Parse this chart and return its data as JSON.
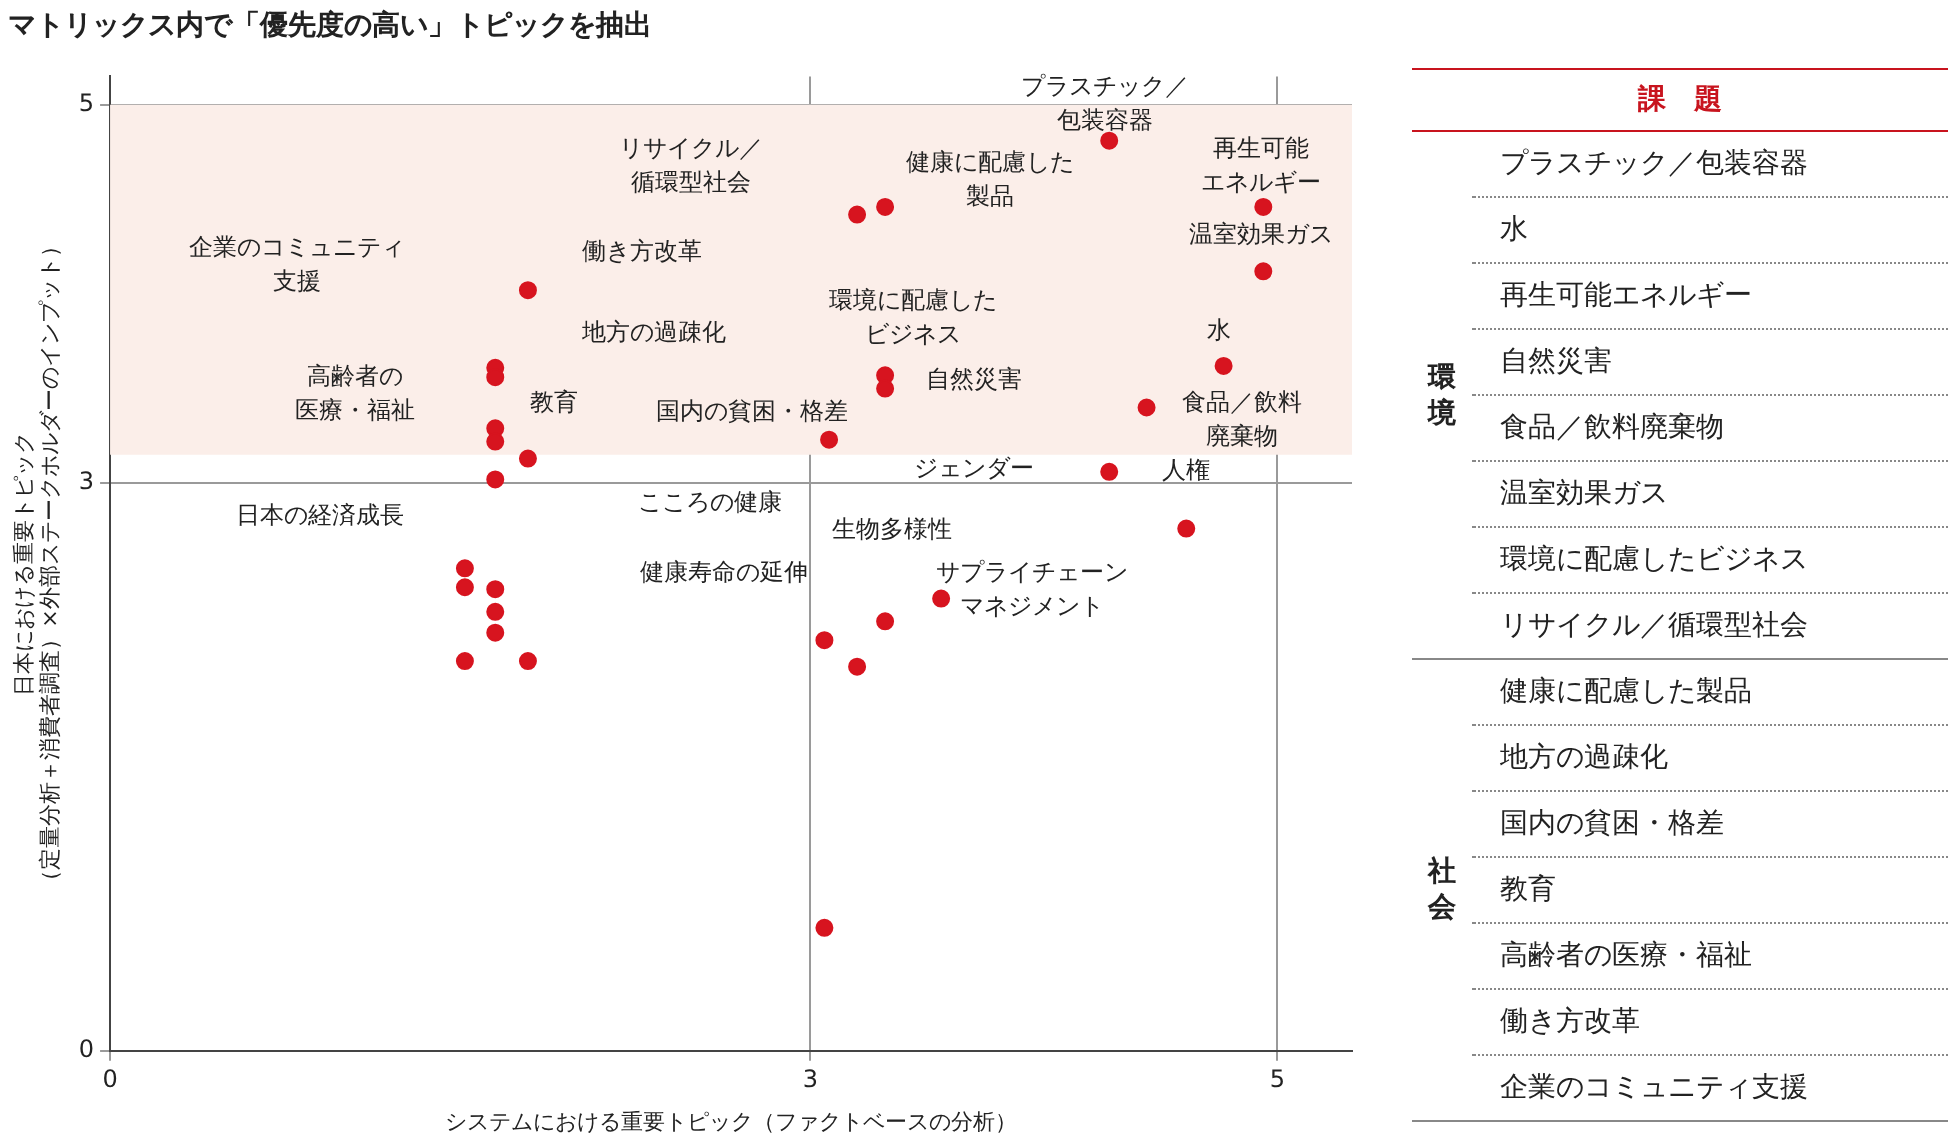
{
  "chart_data": [
    {
      "type": "scatter",
      "title": "マトリックス内で「優先度の高い」トピックを抽出",
      "xlabel": "システムにおける重要トピック（ファクトベースの分析）",
      "ylabel": "日本における重要トピック（定量分析＋消費者調査）×外部ステークホルダーのインプット）",
      "xlim": [
        0,
        5.32
      ],
      "ylim": [
        0,
        5.15
      ],
      "xticks": [
        0,
        3,
        5
      ],
      "yticks": [
        0,
        3,
        5
      ],
      "grid": true,
      "marker": "circle",
      "bands": [
        {
          "axis": "y",
          "from": 3.15,
          "to": 5,
          "color": "#fbeee9"
        }
      ],
      "series": [
        {
          "color": "#d7141f",
          "x": [
            4.28,
            3.2,
            3.32,
            4.94,
            4.94,
            1.79,
            1.65,
            1.65,
            3.32,
            3.32,
            4.77,
            4.44,
            1.65,
            1.65,
            3.08,
            1.79,
            1.65,
            4.28,
            4.61,
            1.52,
            1.52,
            1.65,
            1.65,
            1.65,
            1.52,
            1.79,
            3.56,
            3.32,
            3.06,
            3.2,
            3.06
          ],
          "values": [
            4.81,
            4.42,
            4.46,
            4.46,
            4.12,
            4.02,
            3.61,
            3.56,
            3.57,
            3.5,
            3.62,
            3.4,
            3.29,
            3.22,
            3.23,
            3.13,
            3.02,
            3.06,
            2.76,
            2.55,
            2.45,
            2.44,
            2.32,
            2.21,
            2.06,
            2.06,
            2.39,
            2.27,
            2.17,
            2.03,
            0.65
          ]
        }
      ],
      "annotations": [
        "プラスチック／包装容器",
        "再生可能エネルギー",
        "温室効果ガス",
        "リサイクル／循環型社会",
        "健康に配慮した製品",
        "企業のコミュニティ支援",
        "働き方改革",
        "環境に配慮したビジネス",
        "地方の過疎化",
        "水",
        "高齢者の医療・福祉",
        "自然災害",
        "教育",
        "国内の貧困・格差",
        "食品／飲料廃棄物",
        "ジェンダー",
        "人権",
        "日本の経済成長",
        "こころの健康",
        "生物多様性",
        "健康寿命の延伸",
        "サプライチェーンマネジメント"
      ]
    },
    {
      "type": "other",
      "title": "課　題"
    },
    {
      "type": "other",
      "title": "環境",
      "annotations": [
        "プラスチック／包装容器",
        "水",
        "再生可能エネルギー",
        "自然災害",
        "食品／飲料廃棄物",
        "温室効果ガス",
        "環境に配慮したビジネス",
        "リサイクル／循環型社会"
      ]
    },
    {
      "type": "other",
      "title": "社会",
      "annotations": [
        "健康に配慮した製品",
        "地方の過疎化",
        "国内の貧困・格差",
        "教育",
        "高齢者の医療・福祉",
        "働き方改革",
        "企業のコミュニティ支援"
      ]
    }
  ]
}
